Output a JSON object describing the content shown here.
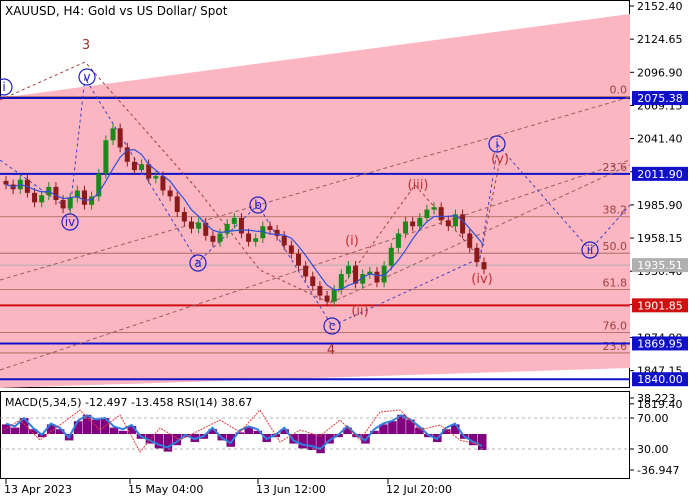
{
  "chart_data": {
    "type": "candlestick",
    "title": "XAUUSD, H4:  Gold vs US Dollar/ Spot",
    "price_axis": {
      "ylim": [
        1836,
        2152.4
      ],
      "ticks": [
        "2152.40",
        "2124.65",
        "2096.90",
        "2069.15",
        "2041.40",
        "2013.65",
        "1985.90",
        "1958.15",
        "1930.40",
        "1902.65",
        "1874.90",
        "1847.15",
        "1819.40"
      ],
      "grid": false
    },
    "time_axis": {
      "labels": [
        "13 Apr 2023",
        "15 May 04:00",
        "13 Jun 12:00",
        "12 Jul 20:00"
      ],
      "bars_per_label": 48
    },
    "candles": [
      {
        "c": 2003
      },
      {
        "c": 1999
      },
      {
        "c": 2007
      },
      {
        "c": 1996
      },
      {
        "c": 1988
      },
      {
        "c": 1994
      },
      {
        "c": 2001
      },
      {
        "c": 1990
      },
      {
        "c": 1983
      },
      {
        "c": 1992
      },
      {
        "c": 1998
      },
      {
        "c": 1986
      },
      {
        "c": 1993
      },
      {
        "c": 2012
      },
      {
        "c": 2040
      },
      {
        "c": 2050
      },
      {
        "c": 2034
      },
      {
        "c": 2022
      },
      {
        "c": 2015
      },
      {
        "c": 2020
      },
      {
        "c": 2008
      },
      {
        "c": 2010
      },
      {
        "c": 1998
      },
      {
        "c": 1993
      },
      {
        "c": 1980
      },
      {
        "c": 1972
      },
      {
        "c": 1966
      },
      {
        "c": 1971
      },
      {
        "c": 1960
      },
      {
        "c": 1955
      },
      {
        "c": 1962
      },
      {
        "c": 1970
      },
      {
        "c": 1975
      },
      {
        "c": 1962
      },
      {
        "c": 1955
      },
      {
        "c": 1958
      },
      {
        "c": 1968
      },
      {
        "c": 1965
      },
      {
        "c": 1960
      },
      {
        "c": 1952
      },
      {
        "c": 1945
      },
      {
        "c": 1935
      },
      {
        "c": 1926
      },
      {
        "c": 1918
      },
      {
        "c": 1910
      },
      {
        "c": 1905
      },
      {
        "c": 1915
      },
      {
        "c": 1928
      },
      {
        "c": 1935
      },
      {
        "c": 1920
      },
      {
        "c": 1928
      },
      {
        "c": 1930
      },
      {
        "c": 1921
      },
      {
        "c": 1935
      },
      {
        "c": 1950
      },
      {
        "c": 1962
      },
      {
        "c": 1972
      },
      {
        "c": 1968
      },
      {
        "c": 1975
      },
      {
        "c": 1982
      },
      {
        "c": 1984
      },
      {
        "c": 1973
      },
      {
        "c": 1968
      },
      {
        "c": 1978
      },
      {
        "c": 1962
      },
      {
        "c": 1950
      },
      {
        "c": 1938
      },
      {
        "c": 1932
      }
    ],
    "moving_average_color": "#3050d8",
    "bullish_color": "#1a8a1a",
    "bearish_color": "#8b1a1a",
    "levels": [
      {
        "price": 2075.38,
        "label": "2075.38",
        "color": "#1010c8",
        "box": true
      },
      {
        "price": 2011.9,
        "label": "2011.90",
        "color": "#1010c8",
        "box": true
      },
      {
        "price": 1935.51,
        "label": "1935.51",
        "color": "#b0b0b0",
        "box": true
      },
      {
        "price": 1901.85,
        "label": "1901.85",
        "color": "#d01010",
        "box": true
      },
      {
        "price": 1869.95,
        "label": "1869.95",
        "color": "#1010c8",
        "box": true
      },
      {
        "price": 1840.0,
        "label": "1840.00",
        "color": "#1010c8",
        "box": true
      }
    ],
    "fibo_levels": [
      {
        "label": "0.0",
        "price": 2076.5
      },
      {
        "label": "23.6",
        "price": 2011.9
      },
      {
        "label": "38.2",
        "price": 1976.0
      },
      {
        "label": "50.0",
        "price": 1945.5
      },
      {
        "label": "61.8",
        "price": 1915.0
      },
      {
        "label": "76.0",
        "price": 1879.0
      },
      {
        "label": "23.6",
        "price": 1862.0
      }
    ],
    "wave_labels": [
      {
        "text": "3",
        "color": "#a03030",
        "style": "plain"
      },
      {
        "text": "v",
        "color": "#2020c0",
        "style": "circle"
      },
      {
        "text": "iv",
        "color": "#2020c0",
        "style": "circle"
      },
      {
        "text": "a",
        "color": "#2020c0",
        "style": "circle"
      },
      {
        "text": "b",
        "color": "#2020c0",
        "style": "circle"
      },
      {
        "text": "c",
        "color": "#2020c0",
        "style": "circle"
      },
      {
        "text": "4",
        "color": "#a03030",
        "style": "plain"
      },
      {
        "text": "(i)",
        "color": "#c03030",
        "style": "plain"
      },
      {
        "text": "(ii)",
        "color": "#c03030",
        "style": "plain"
      },
      {
        "text": "(iii)",
        "color": "#c03030",
        "style": "plain"
      },
      {
        "text": "(iv)",
        "color": "#c03030",
        "style": "plain"
      },
      {
        "text": "(v)",
        "color": "#c03030",
        "style": "plain"
      },
      {
        "text": "i",
        "color": "#2020c0",
        "style": "circle"
      },
      {
        "text": "ii",
        "color": "#2020c0",
        "style": "circle"
      },
      {
        "text": "i",
        "color": "#2020c0",
        "style": "circle"
      }
    ],
    "macd": {
      "label": "MACD(5,34,5) -12.497 -13.458 RSI(14) 38.67",
      "ticks": [
        "38.223",
        "70.00",
        "30.00",
        "-36.947"
      ],
      "histogram_color": "#800080",
      "signal_color": "#3080e0",
      "rsi_color": "#e04040",
      "values": [
        6,
        4,
        10,
        3,
        -2,
        6,
        3,
        -4,
        8,
        12,
        9,
        10,
        4,
        2,
        5,
        -3,
        -6,
        -9,
        -11,
        -7,
        -2,
        -5,
        -3,
        3,
        -4,
        -8,
        1,
        4,
        2,
        -5,
        -2,
        3,
        -6,
        -9,
        -10,
        -12,
        -6,
        -2,
        4,
        -2,
        -6,
        2,
        6,
        8,
        12,
        9,
        4,
        -2,
        -5,
        3,
        6,
        -3,
        -7,
        -10
      ]
    }
  }
}
